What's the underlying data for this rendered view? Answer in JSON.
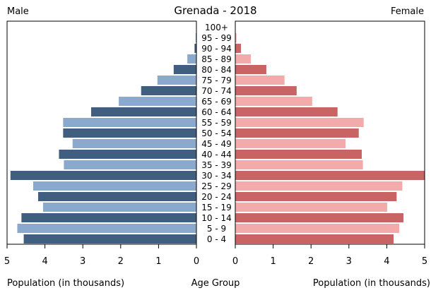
{
  "chart_data": {
    "type": "bar",
    "title": "Grenada - 2018",
    "left_label": "Male",
    "right_label": "Female",
    "xlabel_left": "Population (in thousands)",
    "xlabel_center": "Age Group",
    "xlabel_right": "Population (in thousands)",
    "xlim": [
      0,
      5
    ],
    "ticks": [
      "0",
      "1",
      "2",
      "3",
      "4",
      "5"
    ],
    "tick_values": [
      0,
      1,
      2,
      3,
      4,
      5
    ],
    "categories": [
      "100+",
      "95 - 99",
      "90 - 94",
      "85 - 89",
      "80 - 84",
      "75 - 79",
      "70 - 74",
      "65 - 69",
      "60 - 64",
      "55 - 59",
      "50 - 54",
      "45 - 49",
      "40 - 44",
      "35 - 39",
      "30 - 34",
      "25 - 29",
      "20 - 24",
      "15 - 19",
      "10 - 14",
      "5 - 9",
      "0 - 4"
    ],
    "series": [
      {
        "name": "Male",
        "colors": [
          "#405e80",
          "#8aa9cc"
        ],
        "values": [
          0.01,
          0.02,
          0.05,
          0.24,
          0.6,
          1.03,
          1.46,
          2.05,
          2.78,
          3.52,
          3.52,
          3.27,
          3.63,
          3.5,
          4.91,
          4.31,
          4.18,
          4.05,
          4.62,
          4.73,
          4.56
        ]
      },
      {
        "name": "Female",
        "colors": [
          "#c96464",
          "#f2aaaa"
        ],
        "values": [
          0.01,
          0.03,
          0.15,
          0.41,
          0.82,
          1.3,
          1.62,
          2.03,
          2.7,
          3.39,
          3.26,
          2.91,
          3.34,
          3.37,
          5.0,
          4.41,
          4.26,
          4.01,
          4.44,
          4.33,
          4.18
        ]
      }
    ]
  }
}
